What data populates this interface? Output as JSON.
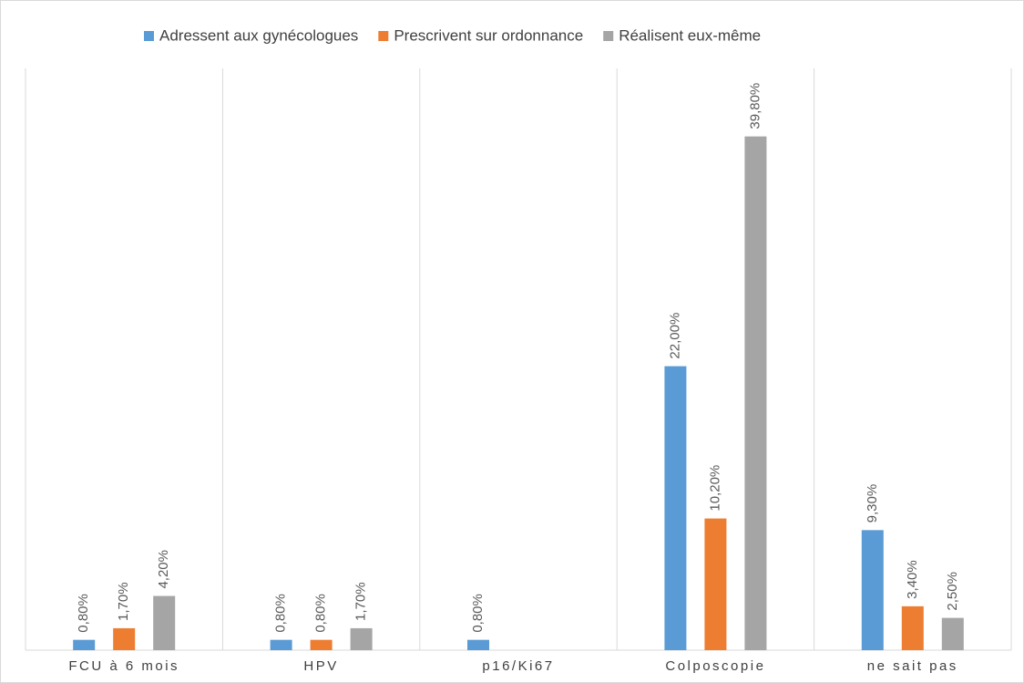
{
  "chart_data": {
    "type": "bar",
    "categories": [
      "FCU à 6 mois",
      "HPV",
      "p16/Ki67",
      "Colposcopie",
      "ne sait pas"
    ],
    "series": [
      {
        "name": "Adressent aux gynécologues",
        "color": "#5b9bd5",
        "values": [
          0.8,
          0.8,
          0.8,
          22,
          9.3
        ],
        "value_labels": [
          "0,80%",
          "0,80%",
          "0,80%",
          "22,00%",
          "9,30%"
        ]
      },
      {
        "name": "Prescrivent sur ordonnance",
        "color": "#ed7d31",
        "values": [
          1.7,
          0.8,
          null,
          10.2,
          3.4
        ],
        "value_labels": [
          "1,70%",
          "0,80%",
          null,
          "10,20%",
          "3,40%"
        ]
      },
      {
        "name": "Réalisent eux-même",
        "color": "#a5a5a5",
        "values": [
          4.2,
          1.7,
          null,
          39.8,
          2.5
        ],
        "value_labels": [
          "4,20%",
          "1,70%",
          null,
          "39,80%",
          "2,50%"
        ]
      }
    ],
    "ylim": [
      0,
      45
    ],
    "legend": "top"
  }
}
